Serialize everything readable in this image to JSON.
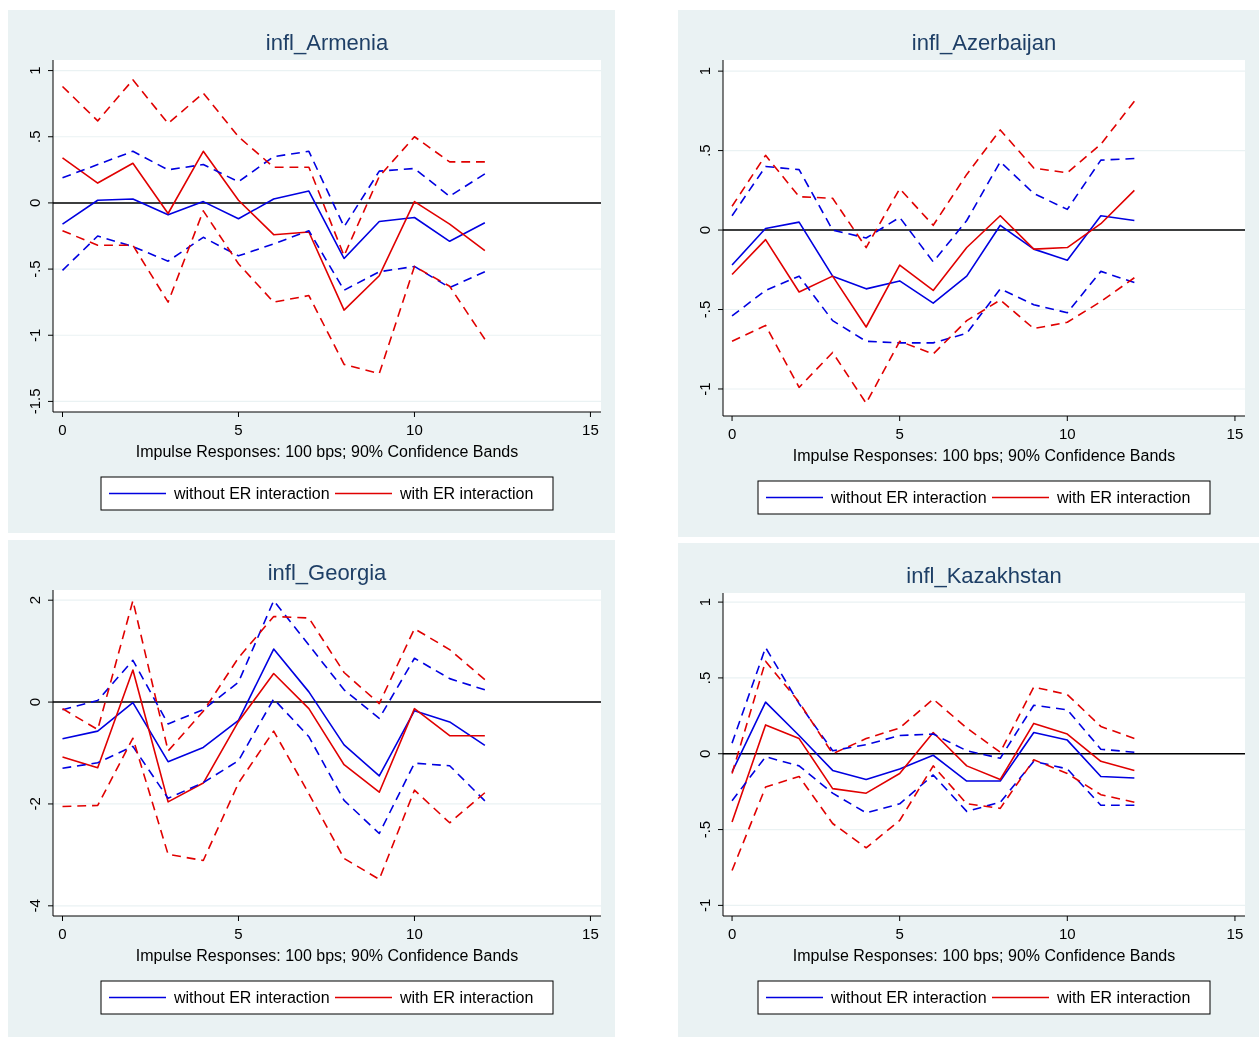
{
  "chart_data": [
    {
      "type": "line",
      "title": "infl_Armenia",
      "xlabel": "Impulse Responses: 100 bps; 90% Confidence Bands",
      "x": [
        0,
        1,
        2,
        3,
        4,
        5,
        6,
        7,
        8,
        9,
        10,
        11,
        12
      ],
      "xlim": [
        -0.27,
        15.3
      ],
      "xticks": [
        0,
        5,
        10,
        15
      ],
      "ylim": [
        -1.58,
        1.08
      ],
      "yticks": [
        {
          "value": -1.5,
          "label": "-1.5"
        },
        {
          "value": -1,
          "label": "-1"
        },
        {
          "value": -0.5,
          "label": "-.5"
        },
        0,
        {
          "value": 0.5,
          "label": ".5"
        },
        1
      ],
      "grid": "y",
      "legend": "bottom",
      "ref_lines": [
        {
          "axis": "y",
          "value": 0,
          "color": "#000000"
        }
      ],
      "series": [
        {
          "name": "without ER interaction",
          "color": "#0000e0",
          "line_style": "solid",
          "values": [
            -0.16,
            0.02,
            0.03,
            -0.09,
            0.01,
            -0.12,
            0.03,
            0.09,
            -0.42,
            -0.14,
            -0.11,
            -0.29,
            -0.15
          ]
        },
        {
          "name": "with ER interaction",
          "color": "#e00000",
          "line_style": "solid",
          "values": [
            0.34,
            0.15,
            0.3,
            -0.08,
            0.39,
            0.02,
            -0.24,
            -0.22,
            -0.81,
            -0.55,
            0.01,
            -0.16,
            -0.36
          ]
        },
        {
          "color": "#0000e0",
          "line_style": "dashed",
          "values": [
            0.19,
            0.29,
            0.39,
            0.25,
            0.29,
            0.16,
            0.35,
            0.39,
            -0.18,
            0.24,
            0.26,
            0.05,
            0.22
          ]
        },
        {
          "color": "#0000e0",
          "line_style": "dashed",
          "values": [
            -0.51,
            -0.25,
            -0.33,
            -0.44,
            -0.26,
            -0.4,
            -0.31,
            -0.21,
            -0.66,
            -0.52,
            -0.48,
            -0.64,
            -0.52
          ]
        },
        {
          "color": "#e00000",
          "line_style": "dashed",
          "values": [
            0.88,
            0.62,
            0.93,
            0.6,
            0.83,
            0.5,
            0.27,
            0.27,
            -0.4,
            0.2,
            0.5,
            0.31,
            0.31
          ]
        },
        {
          "color": "#e00000",
          "line_style": "dashed",
          "values": [
            -0.21,
            -0.32,
            -0.32,
            -0.75,
            -0.06,
            -0.46,
            -0.75,
            -0.7,
            -1.22,
            -1.29,
            -0.48,
            -0.63,
            -1.03
          ]
        }
      ]
    },
    {
      "type": "line",
      "title": "infl_Azerbaijan",
      "xlabel": "Impulse Responses: 100 bps; 90% Confidence Bands",
      "x": [
        0,
        1,
        2,
        3,
        4,
        5,
        6,
        7,
        8,
        9,
        10,
        11,
        12
      ],
      "xlim": [
        -0.27,
        15.3
      ],
      "xticks": [
        0,
        5,
        10,
        15
      ],
      "ylim": [
        -1.17,
        1.07
      ],
      "yticks": [
        {
          "value": -1,
          "label": "-1"
        },
        {
          "value": -0.5,
          "label": "-.5"
        },
        0,
        {
          "value": 0.5,
          "label": ".5"
        },
        1
      ],
      "grid": "y",
      "legend": "bottom",
      "ref_lines": [
        {
          "axis": "y",
          "value": 0,
          "color": "#000000"
        }
      ],
      "series": [
        {
          "name": "without ER interaction",
          "color": "#0000e0",
          "line_style": "solid",
          "values": [
            -0.22,
            0.01,
            0.05,
            -0.29,
            -0.37,
            -0.32,
            -0.46,
            -0.29,
            0.03,
            -0.12,
            -0.19,
            0.09,
            0.06
          ]
        },
        {
          "name": "with ER interaction",
          "color": "#e00000",
          "line_style": "solid",
          "values": [
            -0.28,
            -0.06,
            -0.39,
            -0.29,
            -0.61,
            -0.22,
            -0.38,
            -0.11,
            0.09,
            -0.12,
            -0.11,
            0.04,
            0.25
          ]
        },
        {
          "color": "#0000e0",
          "line_style": "dashed",
          "values": [
            0.09,
            0.4,
            0.38,
            0.0,
            -0.05,
            0.08,
            -0.2,
            0.06,
            0.43,
            0.23,
            0.13,
            0.44,
            0.45
          ]
        },
        {
          "color": "#0000e0",
          "line_style": "dashed",
          "values": [
            -0.54,
            -0.38,
            -0.29,
            -0.57,
            -0.7,
            -0.71,
            -0.71,
            -0.65,
            -0.37,
            -0.47,
            -0.52,
            -0.26,
            -0.33
          ]
        },
        {
          "color": "#e00000",
          "line_style": "dashed",
          "values": [
            0.15,
            0.47,
            0.21,
            0.2,
            -0.11,
            0.26,
            0.03,
            0.35,
            0.63,
            0.39,
            0.36,
            0.54,
            0.81
          ]
        },
        {
          "color": "#e00000",
          "line_style": "dashed",
          "values": [
            -0.7,
            -0.6,
            -0.99,
            -0.77,
            -1.09,
            -0.7,
            -0.78,
            -0.57,
            -0.44,
            -0.62,
            -0.58,
            -0.45,
            -0.3
          ]
        }
      ]
    },
    {
      "type": "line",
      "title": "infl_Georgia",
      "xlabel": "Impulse Responses: 100 bps; 90% Confidence Bands",
      "x": [
        0,
        1,
        2,
        3,
        4,
        5,
        6,
        7,
        8,
        9,
        10,
        11,
        12
      ],
      "xlim": [
        -0.27,
        15.3
      ],
      "xticks": [
        0,
        5,
        10,
        15
      ],
      "ylim": [
        -4.2,
        2.2
      ],
      "yticks": [
        -4,
        -2,
        0,
        2
      ],
      "grid": "y",
      "legend": "bottom",
      "ref_lines": [
        {
          "axis": "y",
          "value": 0,
          "color": "#000000"
        }
      ],
      "series": [
        {
          "name": "without ER interaction",
          "color": "#0000e0",
          "line_style": "solid",
          "values": [
            -0.72,
            -0.57,
            -0.01,
            -1.17,
            -0.89,
            -0.36,
            1.04,
            0.2,
            -0.84,
            -1.45,
            -0.17,
            -0.39,
            -0.85
          ]
        },
        {
          "name": "with ER interaction",
          "color": "#e00000",
          "line_style": "solid",
          "values": [
            -1.08,
            -1.29,
            0.63,
            -1.96,
            -1.59,
            -0.38,
            0.56,
            -0.13,
            -1.23,
            -1.77,
            -0.13,
            -0.66,
            -0.66
          ]
        },
        {
          "color": "#0000e0",
          "line_style": "dashed",
          "values": [
            -0.15,
            0.03,
            0.82,
            -0.43,
            -0.15,
            0.39,
            1.99,
            1.12,
            0.24,
            -0.32,
            0.86,
            0.46,
            0.24
          ]
        },
        {
          "color": "#0000e0",
          "line_style": "dashed",
          "values": [
            -1.3,
            -1.19,
            -0.87,
            -1.89,
            -1.58,
            -1.15,
            0.06,
            -0.68,
            -1.93,
            -2.58,
            -1.2,
            -1.25,
            -1.94
          ]
        },
        {
          "color": "#e00000",
          "line_style": "dashed",
          "values": [
            -0.13,
            -0.54,
            1.99,
            -0.96,
            -0.18,
            0.87,
            1.68,
            1.65,
            0.58,
            -0.03,
            1.44,
            1.03,
            0.44
          ]
        },
        {
          "color": "#e00000",
          "line_style": "dashed",
          "values": [
            -2.05,
            -2.03,
            -0.71,
            -2.99,
            -3.11,
            -1.59,
            -0.57,
            -1.8,
            -3.07,
            -3.48,
            -1.73,
            -2.37,
            -1.78
          ]
        }
      ]
    },
    {
      "type": "line",
      "title": "infl_Kazakhstan",
      "xlabel": "Impulse Responses: 100 bps; 90% Confidence Bands",
      "x": [
        0,
        1,
        2,
        3,
        4,
        5,
        6,
        7,
        8,
        9,
        10,
        11,
        12
      ],
      "xlim": [
        -0.27,
        15.3
      ],
      "xticks": [
        0,
        5,
        10,
        15
      ],
      "ylim": [
        -1.07,
        1.06
      ],
      "yticks": [
        {
          "value": -1,
          "label": "-1"
        },
        {
          "value": -0.5,
          "label": "-.5"
        },
        0,
        {
          "value": 0.5,
          "label": ".5"
        },
        1
      ],
      "grid": "y",
      "legend": "bottom",
      "ref_lines": [
        {
          "axis": "y",
          "value": 0,
          "color": "#000000"
        }
      ],
      "series": [
        {
          "name": "without ER interaction",
          "color": "#0000e0",
          "line_style": "solid",
          "values": [
            -0.12,
            0.34,
            0.12,
            -0.11,
            -0.17,
            -0.1,
            -0.01,
            -0.18,
            -0.18,
            0.14,
            0.09,
            -0.15,
            -0.16
          ]
        },
        {
          "name": "with ER interaction",
          "color": "#e00000",
          "line_style": "solid",
          "values": [
            -0.45,
            0.19,
            0.1,
            -0.23,
            -0.26,
            -0.13,
            0.14,
            -0.08,
            -0.17,
            0.2,
            0.13,
            -0.05,
            -0.11
          ]
        },
        {
          "color": "#0000e0",
          "line_style": "dashed",
          "values": [
            0.07,
            0.7,
            0.33,
            0.02,
            0.06,
            0.12,
            0.13,
            0.02,
            -0.03,
            0.32,
            0.29,
            0.03,
            0.01
          ]
        },
        {
          "color": "#0000e0",
          "line_style": "dashed",
          "values": [
            -0.31,
            -0.02,
            -0.08,
            -0.26,
            -0.39,
            -0.33,
            -0.14,
            -0.38,
            -0.32,
            -0.05,
            -0.1,
            -0.34,
            -0.34
          ]
        },
        {
          "color": "#e00000",
          "line_style": "dashed",
          "values": [
            -0.13,
            0.61,
            0.34,
            0.0,
            0.1,
            0.17,
            0.36,
            0.17,
            0.01,
            0.44,
            0.39,
            0.18,
            0.1
          ]
        },
        {
          "color": "#e00000",
          "line_style": "dashed",
          "values": [
            -0.77,
            -0.22,
            -0.15,
            -0.46,
            -0.62,
            -0.44,
            -0.08,
            -0.33,
            -0.36,
            -0.04,
            -0.13,
            -0.27,
            -0.32
          ]
        }
      ]
    }
  ]
}
